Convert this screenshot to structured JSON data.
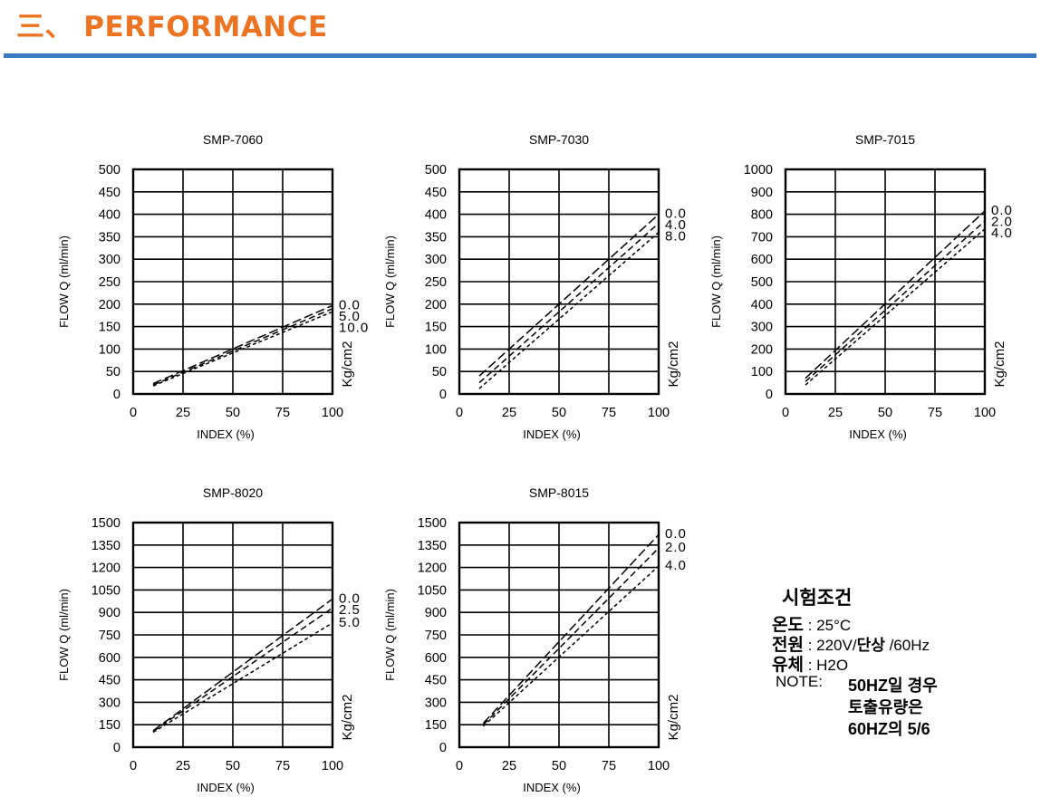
{
  "header": {
    "prefix": "三、",
    "title": "PERFORMANCE",
    "accent_color": "#ec7321",
    "rule_color": "#3b7bc0"
  },
  "chart_data": [
    {
      "type": "line",
      "title": "SMP-7060",
      "xlabel": "INDEX (%)",
      "ylabel": "FLOW Q (ml/min)",
      "unit_label": "Kg/cm2",
      "xlim": [
        0,
        100
      ],
      "ylim": [
        0,
        500
      ],
      "xticks": [
        0,
        25,
        50,
        75,
        100
      ],
      "yticks": [
        0,
        50,
        100,
        150,
        200,
        250,
        300,
        350,
        400,
        450,
        500
      ],
      "grid": true,
      "series": [
        {
          "name": "0.0",
          "x": [
            10,
            100
          ],
          "y": [
            23,
            197
          ]
        },
        {
          "name": "5.0",
          "x": [
            10,
            100
          ],
          "y": [
            20,
            190
          ]
        },
        {
          "name": "10.0",
          "x": [
            10,
            100
          ],
          "y": [
            18,
            183
          ]
        }
      ]
    },
    {
      "type": "line",
      "title": "SMP-7030",
      "xlabel": "INDEX (%)",
      "ylabel": "FLOW Q (ml/min)",
      "unit_label": "Kg/cm2",
      "xlim": [
        0,
        100
      ],
      "ylim": [
        0,
        500
      ],
      "xticks": [
        0,
        25,
        50,
        75,
        100
      ],
      "yticks": [
        0,
        50,
        100,
        150,
        200,
        250,
        300,
        350,
        400,
        450,
        500
      ],
      "grid": true,
      "series": [
        {
          "name": "0.0",
          "x": [
            10,
            100
          ],
          "y": [
            40,
            400
          ]
        },
        {
          "name": "4.0",
          "x": [
            10,
            100
          ],
          "y": [
            25,
            380
          ]
        },
        {
          "name": "8.0",
          "x": [
            10,
            100
          ],
          "y": [
            12,
            360
          ]
        }
      ]
    },
    {
      "type": "line",
      "title": "SMP-7015",
      "xlabel": "INDEX (%)",
      "ylabel": "FLOW Q (ml/min)",
      "unit_label": "Kg/cm2",
      "xlim": [
        0,
        100
      ],
      "ylim": [
        0,
        1000
      ],
      "xticks": [
        0,
        25,
        50,
        75,
        100
      ],
      "yticks": [
        0,
        100,
        200,
        300,
        400,
        500,
        600,
        700,
        800,
        900,
        1000
      ],
      "grid": true,
      "series": [
        {
          "name": "0.0",
          "x": [
            10,
            100
          ],
          "y": [
            70,
            815
          ]
        },
        {
          "name": "2.0",
          "x": [
            10,
            100
          ],
          "y": [
            55,
            770
          ]
        },
        {
          "name": "4.0",
          "x": [
            10,
            100
          ],
          "y": [
            40,
            735
          ]
        }
      ]
    },
    {
      "type": "line",
      "title": "SMP-8020",
      "xlabel": "INDEX (%)",
      "ylabel": "FLOW Q (ml/min)",
      "unit_label": "Kg/cm2",
      "xlim": [
        0,
        100
      ],
      "ylim": [
        0,
        1500
      ],
      "xticks": [
        0,
        25,
        50,
        75,
        100
      ],
      "yticks": [
        0,
        150,
        300,
        450,
        600,
        750,
        900,
        1050,
        1200,
        1350,
        1500
      ],
      "grid": true,
      "series": [
        {
          "name": "0.0",
          "x": [
            10,
            100
          ],
          "y": [
            110,
            990
          ]
        },
        {
          "name": "2.5",
          "x": [
            10,
            100
          ],
          "y": [
            105,
            930
          ]
        },
        {
          "name": "5.0",
          "x": [
            10,
            100
          ],
          "y": [
            100,
            830
          ]
        }
      ]
    },
    {
      "type": "line",
      "title": "SMP-8015",
      "xlabel": "INDEX (%)",
      "ylabel": "FLOW Q (ml/min)",
      "unit_label": "Kg/cm2",
      "xlim": [
        0,
        100
      ],
      "ylim": [
        0,
        1500
      ],
      "xticks": [
        0,
        25,
        50,
        75,
        100
      ],
      "yticks": [
        0,
        150,
        300,
        450,
        600,
        750,
        900,
        1050,
        1200,
        1350,
        1500
      ],
      "grid": true,
      "series": [
        {
          "name": "0.0",
          "x": [
            12,
            100
          ],
          "y": [
            160,
            1420
          ]
        },
        {
          "name": "2.0",
          "x": [
            12,
            100
          ],
          "y": [
            150,
            1330
          ]
        },
        {
          "name": "4.0",
          "x": [
            12,
            100
          ],
          "y": [
            140,
            1210
          ]
        }
      ]
    }
  ],
  "conditions": {
    "title": "시험조건",
    "rows": [
      {
        "key": "온도",
        "value": " : 25°C"
      },
      {
        "key": "전원",
        "value": " : 220V/",
        "value_bold": "단상",
        "value_tail": " /60Hz"
      },
      {
        "key": "유체",
        "value": " : H2O"
      }
    ],
    "note_label": "NOTE:",
    "note_lines": [
      "50HZ일 경우",
      "토출유량은",
      "60HZ의 5/6"
    ]
  }
}
